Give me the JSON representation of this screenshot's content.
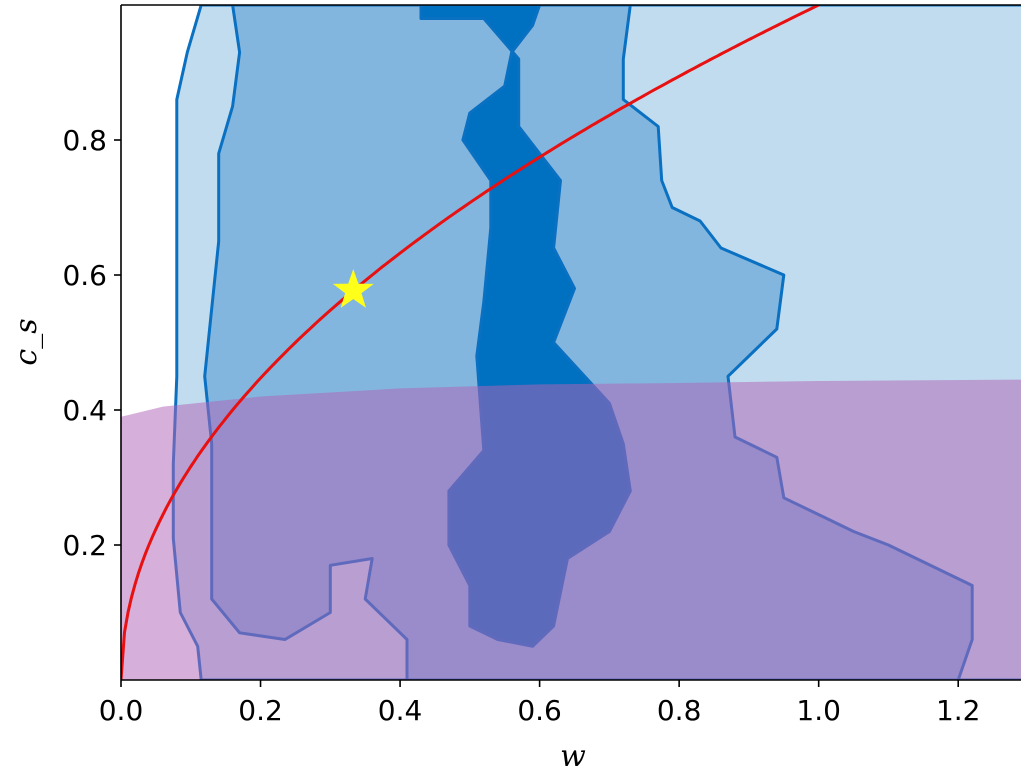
{
  "chart_data": {
    "type": "contour",
    "xlabel": "w",
    "ylabel": "c_s",
    "xlim": [
      0.0,
      1.29
    ],
    "ylim": [
      0.0,
      1.0
    ],
    "x_ticks": [
      0.0,
      0.2,
      0.4,
      0.6,
      0.8,
      1.0,
      1.2
    ],
    "x_tick_labels": [
      "0.0",
      "0.2",
      "0.4",
      "0.6",
      "0.8",
      "1.0",
      "1.2"
    ],
    "y_ticks": [
      0.2,
      0.4,
      0.6,
      0.8
    ],
    "y_tick_labels": [
      "0.2",
      "0.4",
      "0.6",
      "0.8"
    ],
    "grid": false,
    "colors": {
      "level1": "#c2dcef",
      "level2": "#83b6de",
      "level3": "#0070c0",
      "contour_line": "#0a70c2",
      "shaded_region": "#b065b8",
      "curve": "#e81010",
      "marker": "#ffff1a"
    },
    "contour_levels": [
      {
        "level": 1,
        "polygon": [
          [
            0.115,
            1.0
          ],
          [
            0.095,
            0.93
          ],
          [
            0.08,
            0.86
          ],
          [
            0.08,
            0.73
          ],
          [
            0.08,
            0.6
          ],
          [
            0.08,
            0.45
          ],
          [
            0.075,
            0.32
          ],
          [
            0.075,
            0.21
          ],
          [
            0.085,
            0.1
          ],
          [
            0.11,
            0.05
          ],
          [
            0.115,
            0.0
          ],
          [
            1.3,
            0.0
          ],
          [
            1.3,
            1.0
          ]
        ]
      },
      {
        "level": 2,
        "polygon": [
          [
            0.16,
            1.0
          ],
          [
            0.17,
            0.93
          ],
          [
            0.16,
            0.85
          ],
          [
            0.14,
            0.78
          ],
          [
            0.14,
            0.65
          ],
          [
            0.13,
            0.55
          ],
          [
            0.12,
            0.45
          ],
          [
            0.13,
            0.35
          ],
          [
            0.13,
            0.22
          ],
          [
            0.13,
            0.12
          ],
          [
            0.17,
            0.07
          ],
          [
            0.235,
            0.06
          ],
          [
            0.3,
            0.1
          ],
          [
            0.3,
            0.17
          ],
          [
            0.36,
            0.18
          ],
          [
            0.35,
            0.12
          ],
          [
            0.41,
            0.06
          ],
          [
            0.41,
            0.0
          ],
          [
            1.2,
            0.0
          ],
          [
            1.22,
            0.06
          ],
          [
            1.22,
            0.1
          ],
          [
            1.22,
            0.14
          ],
          [
            1.1,
            0.2
          ],
          [
            1.05,
            0.22
          ],
          [
            1.01,
            0.24
          ],
          [
            0.95,
            0.27
          ],
          [
            0.94,
            0.33
          ],
          [
            0.88,
            0.36
          ],
          [
            0.87,
            0.45
          ],
          [
            0.94,
            0.52
          ],
          [
            0.95,
            0.6
          ],
          [
            0.86,
            0.64
          ],
          [
            0.83,
            0.68
          ],
          [
            0.79,
            0.7
          ],
          [
            0.775,
            0.74
          ],
          [
            0.77,
            0.82
          ],
          [
            0.72,
            0.86
          ],
          [
            0.72,
            0.92
          ],
          [
            0.73,
            1.0
          ]
        ]
      },
      {
        "level": 3,
        "polygon": [
          [
            0.43,
            1.0
          ],
          [
            0.43,
            0.98
          ],
          [
            0.52,
            0.98
          ],
          [
            0.57,
            0.92
          ],
          [
            0.57,
            0.82
          ],
          [
            0.63,
            0.74
          ],
          [
            0.62,
            0.64
          ],
          [
            0.65,
            0.58
          ],
          [
            0.62,
            0.5
          ],
          [
            0.7,
            0.41
          ],
          [
            0.72,
            0.35
          ],
          [
            0.73,
            0.28
          ],
          [
            0.7,
            0.22
          ],
          [
            0.64,
            0.18
          ],
          [
            0.63,
            0.13
          ],
          [
            0.62,
            0.08
          ],
          [
            0.59,
            0.05
          ],
          [
            0.54,
            0.06
          ],
          [
            0.5,
            0.08
          ],
          [
            0.5,
            0.14
          ],
          [
            0.47,
            0.2
          ],
          [
            0.47,
            0.28
          ],
          [
            0.52,
            0.34
          ],
          [
            0.51,
            0.48
          ],
          [
            0.52,
            0.56
          ],
          [
            0.53,
            0.67
          ],
          [
            0.53,
            0.74
          ],
          [
            0.49,
            0.8
          ],
          [
            0.5,
            0.84
          ],
          [
            0.55,
            0.88
          ],
          [
            0.56,
            0.93
          ],
          [
            0.59,
            0.97
          ],
          [
            0.6,
            1.0
          ]
        ]
      }
    ],
    "shaded_region": {
      "label": "",
      "upper_boundary": [
        [
          0.0,
          0.39
        ],
        [
          0.06,
          0.405
        ],
        [
          0.2,
          0.42
        ],
        [
          0.4,
          0.432
        ],
        [
          0.6,
          0.438
        ],
        [
          0.8,
          0.44
        ],
        [
          1.0,
          0.443
        ],
        [
          1.29,
          0.445
        ]
      ]
    },
    "curve": {
      "label": "",
      "formula": "c_s = sqrt(w)",
      "x_start": 0.0,
      "x_end": 1.0
    },
    "marker": {
      "label": "",
      "shape": "star",
      "x": 0.333,
      "y": 0.577
    }
  }
}
